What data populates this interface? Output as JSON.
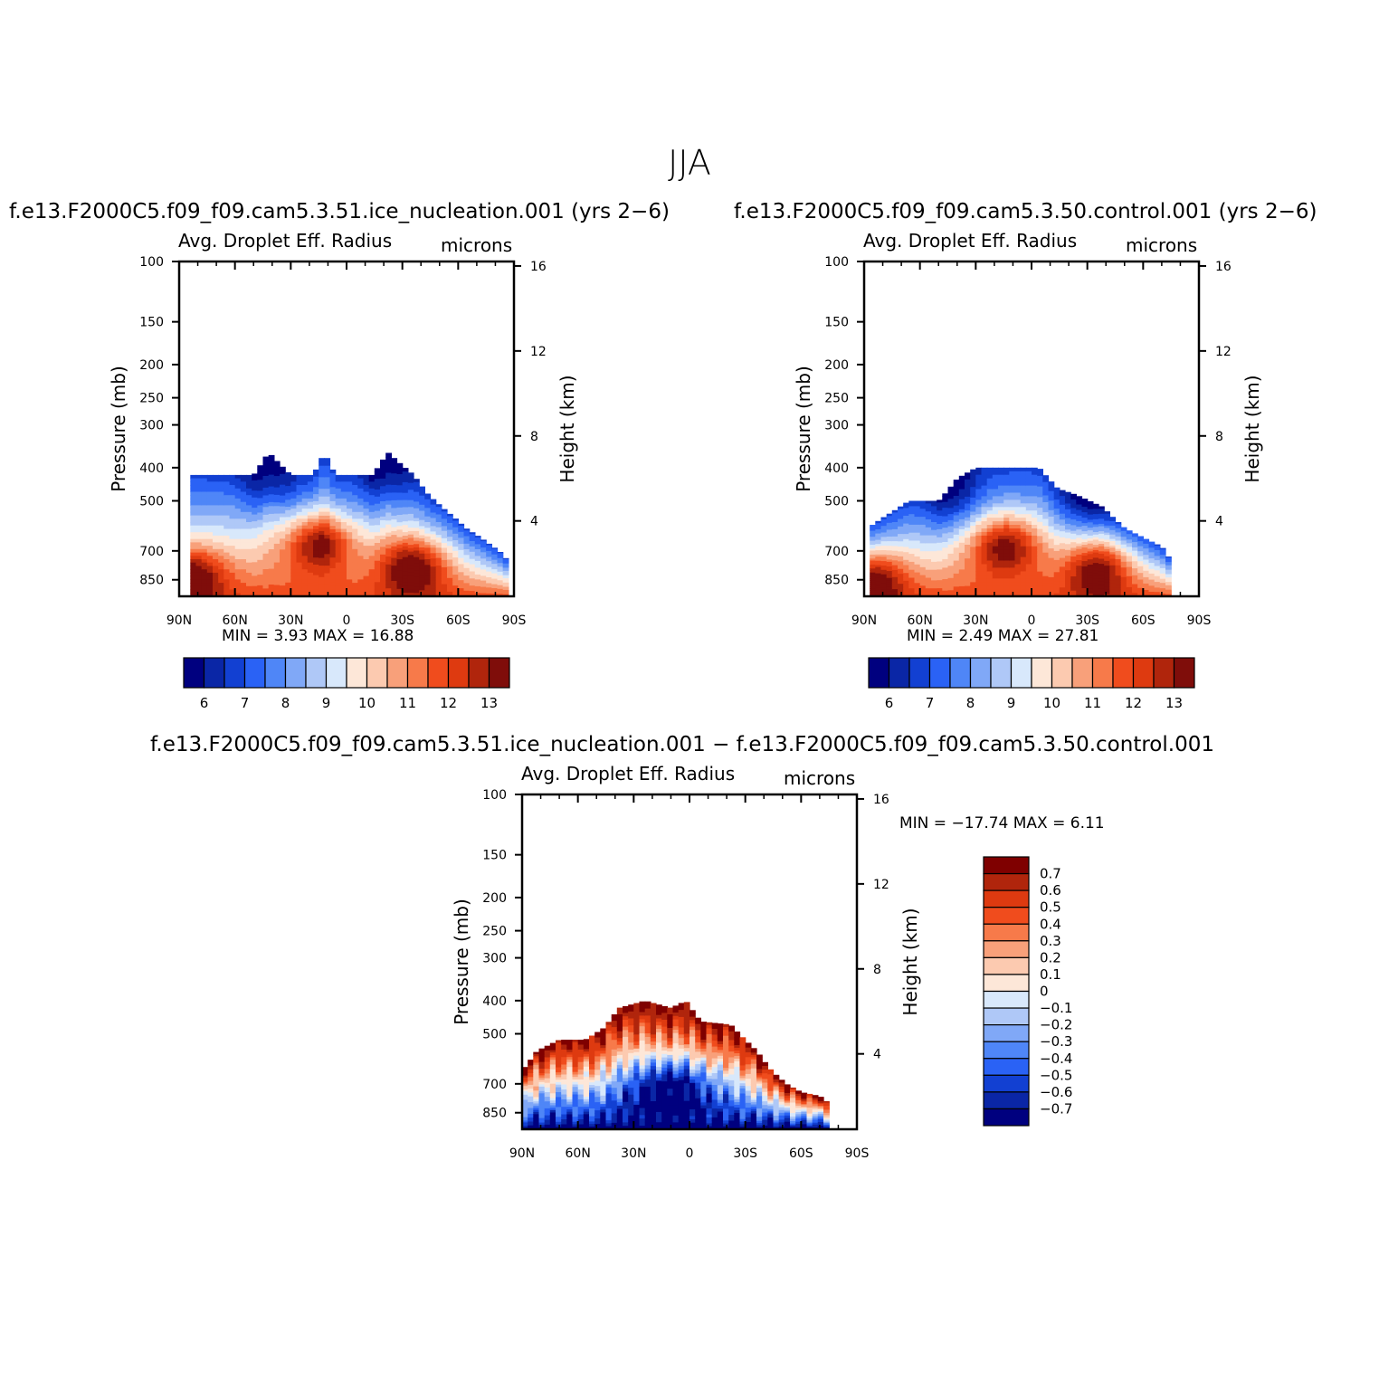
{
  "page": {
    "title": "JJA"
  },
  "panels": [
    {
      "id": "test",
      "run_title": "f.e13.F2000C5.f09_f09.cam5.3.51.ice_nucleation.001  (yrs  2−6)",
      "var_title": "Avg.  Droplet  Eff.  Radius",
      "units": "microns",
      "y_left_label": "Pressure  (mb)",
      "y_right_label": "Height  (km)",
      "min_max": "MIN  =      3.93    MAX  =     16.88"
    },
    {
      "id": "control",
      "run_title": "f.e13.F2000C5.f09_f09.cam5.3.50.control.001  (yrs  2−6)",
      "var_title": "Avg.  Droplet  Eff.  Radius",
      "units": "microns",
      "y_left_label": "Pressure  (mb)",
      "y_right_label": "Height  (km)",
      "min_max": "MIN  =      2.49    MAX  =     27.81"
    },
    {
      "id": "diff",
      "run_title": "f.e13.F2000C5.f09_f09.cam5.3.51.ice_nucleation.001  −  f.e13.F2000C5.f09_f09.cam5.3.50.control.001",
      "var_title": "Avg.  Droplet  Eff.  Radius",
      "units": "microns",
      "y_left_label": "Pressure  (mb)",
      "y_right_label": "Height  (km)",
      "min_max": "MIN  =  −17.74    MAX  =      6.11"
    }
  ],
  "colors": {
    "radius_levels": [
      "#00007f",
      "#0a26a6",
      "#1240d2",
      "#2a62f5",
      "#4f86f7",
      "#80a8f7",
      "#afc8f7",
      "#d8e8fb",
      "#fde7d8",
      "#fccab0",
      "#f8a07a",
      "#f77a4a",
      "#f04c1d",
      "#de3a10",
      "#b0250c",
      "#7f0d0a"
    ],
    "diff_levels": [
      "#7f0000",
      "#b0250c",
      "#de3a10",
      "#f04c1d",
      "#f77a4a",
      "#f8a07a",
      "#fccab0",
      "#fde7d8",
      "#d8e8fb",
      "#afc8f7",
      "#80a8f7",
      "#4f86f7",
      "#2a62f5",
      "#1240d2",
      "#0a26a6",
      "#00007f"
    ]
  },
  "chart_data": [
    {
      "type": "heatmap",
      "title": "Avg.  Droplet  Eff.  Radius",
      "panel": "test",
      "units": "microns",
      "x_ticks": [
        "90N",
        "60N",
        "30N",
        "0",
        "30S",
        "60S",
        "90S"
      ],
      "x_values": [
        90,
        60,
        30,
        0,
        -30,
        -60,
        -90
      ],
      "y_pressure_ticks": [
        "100",
        "150",
        "200",
        "250",
        "300",
        "400",
        "500",
        "700",
        "850"
      ],
      "y_pressure_values": [
        100,
        150,
        200,
        250,
        300,
        400,
        500,
        700,
        850
      ],
      "y_height_ticks": [
        "16",
        "12",
        "8",
        "4"
      ],
      "y_height_values": [
        16,
        12,
        8,
        4
      ],
      "colorbar_labels": [
        "6",
        "7",
        "8",
        "9",
        "10",
        "11",
        "12",
        "13"
      ],
      "min": 3.93,
      "max": 16.88,
      "cloud_top_pressure": [
        [
          85,
          420
        ],
        [
          70,
          420
        ],
        [
          50,
          420
        ],
        [
          42,
          360
        ],
        [
          30,
          420
        ],
        [
          18,
          420
        ],
        [
          12,
          360
        ],
        [
          6,
          420
        ],
        [
          -14,
          420
        ],
        [
          -22,
          360
        ],
        [
          -36,
          420
        ],
        [
          -44,
          480
        ],
        [
          -58,
          560
        ],
        [
          -64,
          600
        ],
        [
          -72,
          640
        ],
        [
          -82,
          700
        ],
        [
          -88,
          760
        ]
      ],
      "maxima": [
        {
          "lat": 15,
          "p": 660,
          "v": 13.5
        },
        {
          "lat": -36,
          "p": 770,
          "v": 13.2
        },
        {
          "lat": 84,
          "p": 830,
          "v": 13.0
        }
      ],
      "minima": [
        {
          "lat": 42,
          "p": 430,
          "v": 6.8
        },
        {
          "lat": -22,
          "p": 420,
          "v": 7.2
        }
      ]
    },
    {
      "type": "heatmap",
      "title": "Avg.  Droplet  Eff.  Radius",
      "panel": "control",
      "units": "microns",
      "x_ticks": [
        "90N",
        "60N",
        "30N",
        "0",
        "30S",
        "60S",
        "90S"
      ],
      "x_values": [
        90,
        60,
        30,
        0,
        -30,
        -60,
        -90
      ],
      "y_pressure_ticks": [
        "100",
        "150",
        "200",
        "250",
        "300",
        "400",
        "500",
        "700",
        "850"
      ],
      "y_pressure_values": [
        100,
        150,
        200,
        250,
        300,
        400,
        500,
        700,
        850
      ],
      "y_height_ticks": [
        "16",
        "12",
        "8",
        "4"
      ],
      "y_height_values": [
        16,
        12,
        8,
        4
      ],
      "colorbar_labels": [
        "6",
        "7",
        "8",
        "9",
        "10",
        "11",
        "12",
        "13"
      ],
      "min": 2.49,
      "max": 27.81,
      "cloud_top_pressure": [
        [
          88,
          600
        ],
        [
          80,
          560
        ],
        [
          66,
          500
        ],
        [
          50,
          500
        ],
        [
          40,
          430
        ],
        [
          30,
          400
        ],
        [
          18,
          400
        ],
        [
          8,
          400
        ],
        [
          -4,
          400
        ],
        [
          -14,
          460
        ],
        [
          -24,
          480
        ],
        [
          -38,
          520
        ],
        [
          -50,
          600
        ],
        [
          -60,
          640
        ],
        [
          -70,
          680
        ],
        [
          -76,
          760
        ]
      ],
      "maxima": [
        {
          "lat": 14,
          "p": 670,
          "v": 13.5
        },
        {
          "lat": -36,
          "p": 780,
          "v": 13.2
        },
        {
          "lat": 86,
          "p": 840,
          "v": 13.0
        }
      ],
      "minima": [
        {
          "lat": 40,
          "p": 480,
          "v": 7.0
        },
        {
          "lat": -30,
          "p": 480,
          "v": 6.5
        }
      ]
    },
    {
      "type": "heatmap",
      "title": "Avg.  Droplet  Eff.  Radius",
      "panel": "difference",
      "units": "microns",
      "x_ticks": [
        "90N",
        "60N",
        "30N",
        "0",
        "30S",
        "60S",
        "90S"
      ],
      "x_values": [
        90,
        60,
        30,
        0,
        -30,
        -60,
        -90
      ],
      "y_pressure_ticks": [
        "100",
        "150",
        "200",
        "250",
        "300",
        "400",
        "500",
        "700",
        "850"
      ],
      "y_pressure_values": [
        100,
        150,
        200,
        250,
        300,
        400,
        500,
        700,
        850
      ],
      "y_height_ticks": [
        "16",
        "12",
        "8",
        "4"
      ],
      "y_height_values": [
        16,
        12,
        8,
        4
      ],
      "colorbar_labels": [
        "0.7",
        "0.6",
        "0.5",
        "0.4",
        "0.3",
        "0.2",
        "0.1",
        "0",
        "−0.1",
        "−0.2",
        "−0.3",
        "−0.4",
        "−0.5",
        "−0.6",
        "−0.7"
      ],
      "min": -17.74,
      "max": 6.11,
      "cloud_top_pressure": [
        [
          90,
          640
        ],
        [
          82,
          560
        ],
        [
          70,
          520
        ],
        [
          56,
          520
        ],
        [
          46,
          480
        ],
        [
          38,
          420
        ],
        [
          24,
          400
        ],
        [
          10,
          420
        ],
        [
          2,
          400
        ],
        [
          -6,
          460
        ],
        [
          -22,
          470
        ],
        [
          -36,
          560
        ],
        [
          -44,
          640
        ],
        [
          -52,
          700
        ],
        [
          -60,
          740
        ],
        [
          -70,
          760
        ],
        [
          -74,
          790
        ]
      ],
      "positive_band_lat": [
        90,
        -60
      ],
      "negative_core": {
        "lat": 10,
        "p": 720
      }
    }
  ]
}
